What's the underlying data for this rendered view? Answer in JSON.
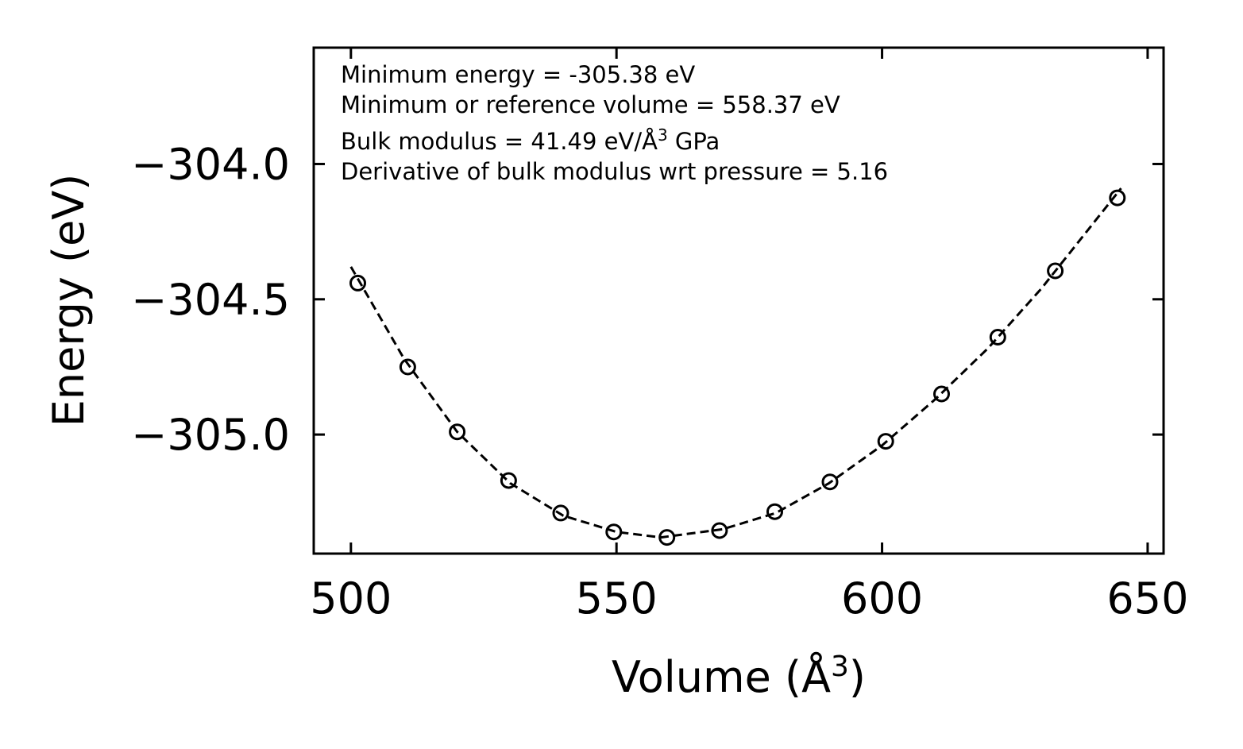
{
  "chart_data": {
    "type": "scatter",
    "xlabel": "Volume (Å",
    "xlabel_sup": "3",
    "xlabel_end": ")",
    "ylabel": "Energy (eV)",
    "xlim": [
      493,
      653
    ],
    "ylim": [
      -305.44,
      -303.57
    ],
    "xticks": [
      500,
      550,
      600,
      650
    ],
    "xtick_labels": [
      "500",
      "550",
      "600",
      "650"
    ],
    "yticks": [
      -304.0,
      -304.5,
      -305.0
    ],
    "ytick_labels": [
      "−304.0",
      "−304.5",
      "−305.0"
    ],
    "grid": false,
    "series": [
      {
        "name": "data",
        "style": "open-circle",
        "x": [
          501.3,
          510.7,
          520.0,
          529.7,
          539.5,
          549.5,
          559.5,
          569.4,
          579.8,
          590.2,
          600.7,
          611.2,
          621.8,
          632.6,
          644.3
        ],
        "y": [
          -304.44,
          -304.75,
          -304.99,
          -305.17,
          -305.29,
          -305.36,
          -305.38,
          -305.355,
          -305.285,
          -305.175,
          -305.025,
          -304.85,
          -304.64,
          -304.395,
          -304.125
        ]
      },
      {
        "name": "fit",
        "style": "dashed-line",
        "x": [
          500,
          510,
          520,
          530,
          540,
          550,
          558.37,
          570,
          580,
          590,
          600,
          610,
          620,
          630,
          645
        ],
        "y": [
          -304.38,
          -304.72,
          -304.99,
          -305.18,
          -305.3,
          -305.36,
          -305.38,
          -305.35,
          -305.29,
          -305.18,
          -305.04,
          -304.87,
          -304.68,
          -304.46,
          -304.09
        ]
      }
    ],
    "annotations": [
      {
        "id": "min_energy",
        "text": "Minimum energy = -305.38 eV"
      },
      {
        "id": "ref_volume",
        "text": "Minimum or reference volume = 558.37 eV"
      },
      {
        "id": "bulk_modulus",
        "text": "Bulk modulus = 41.49 eV/Å",
        "sup": "3",
        "suffix": " GPa"
      },
      {
        "id": "bulk_deriv",
        "text": "Derivative of bulk modulus wrt pressure = 5.16"
      }
    ]
  }
}
